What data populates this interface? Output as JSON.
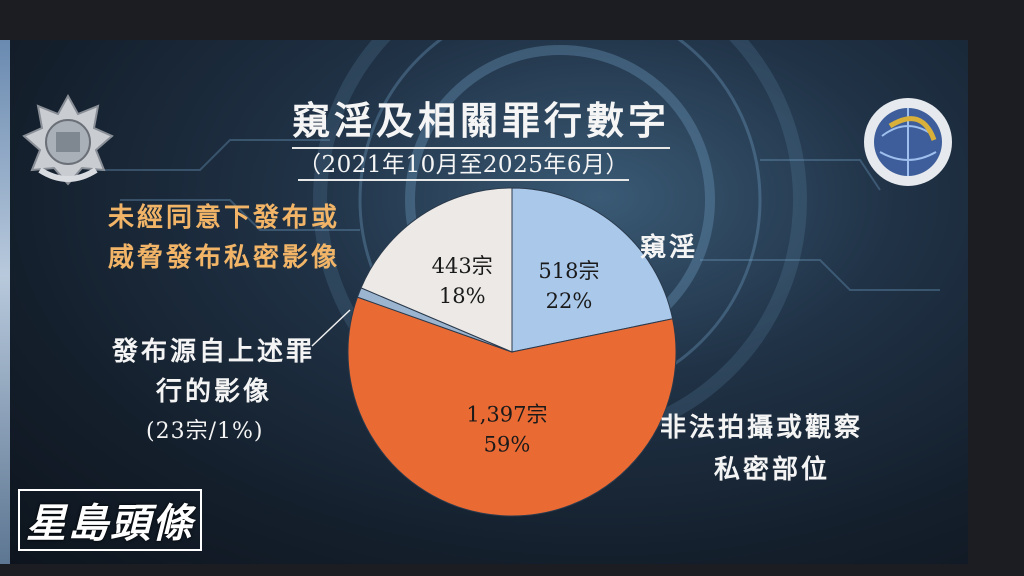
{
  "title": "窺淫及相關罪行數字",
  "subtitle": "（2021年10月至2025年6月）",
  "watermark": "星島頭條",
  "annotations": {
    "voyeurism_label": "窺淫",
    "nonconsensual_line1": "未經同意下發布或",
    "nonconsensual_line2": "威脅發布私密影像",
    "publish_derived_line1": "發布源自上述罪",
    "publish_derived_line2": "行的影像",
    "publish_derived_line3": "(23宗/1%)",
    "unlawful_line1": "非法拍攝或觀察",
    "unlawful_line2": "私密部位"
  },
  "colors": {
    "voyeurism": "#a9c8ea",
    "unlawful": "#ea6a34",
    "nonconsensual": "#ece9e6",
    "publish_derived": "#9bb4cf",
    "label_orange": "#f2b568"
  },
  "chart_data": {
    "type": "pie",
    "slices": [
      {
        "value": 518,
        "percent": 22,
        "value_label": "518宗",
        "percent_label": "22%",
        "color": "#a9c8ea"
      },
      {
        "value": 1397,
        "percent": 59,
        "value_label": "1,397宗",
        "percent_label": "59%",
        "color": "#ea6a34"
      },
      {
        "value": 23,
        "percent": 1,
        "value_label": "",
        "percent_label": "",
        "color": "#9bb4cf"
      },
      {
        "value": 443,
        "percent": 18,
        "value_label": "443宗",
        "percent_label": "18%",
        "color": "#ece9e6"
      }
    ]
  }
}
